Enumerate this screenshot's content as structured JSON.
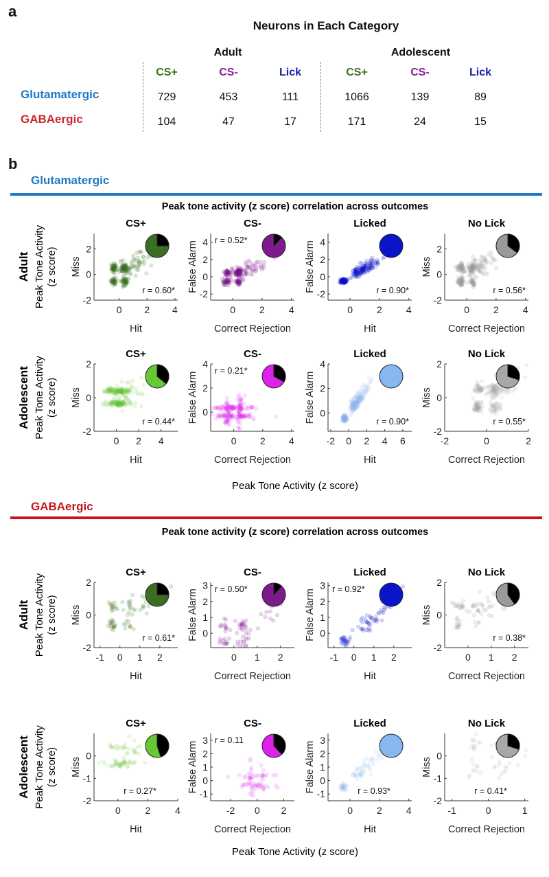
{
  "panel_a_label": "a",
  "panel_b_label": "b",
  "table": {
    "title": "Neurons in Each Category",
    "groups": [
      "Adult",
      "Adolescent"
    ],
    "columns": [
      {
        "label": "CS+",
        "color": "#3a6e1f"
      },
      {
        "label": "CS-",
        "color": "#8a1f9a"
      },
      {
        "label": "Lick",
        "color": "#1a1ab0"
      },
      {
        "label": "CS+",
        "color": "#3a6e1f"
      },
      {
        "label": "CS-",
        "color": "#8a1f9a"
      },
      {
        "label": "Lick",
        "color": "#1a1ab0"
      }
    ],
    "rows": [
      {
        "label": "Glutamatergic",
        "color": "#1f7ac4",
        "values": [
          "729",
          "453",
          "111",
          "1066",
          "139",
          "89"
        ]
      },
      {
        "label": "GABAergic",
        "color": "#c8282d",
        "values": [
          "104",
          "47",
          "17",
          "171",
          "24",
          "15"
        ]
      }
    ]
  },
  "chart_data": {
    "type": "scatter",
    "sections": [
      {
        "title": "Glutamatergic",
        "color": "#1f7ac4",
        "subtitle": "Peak tone activity (z score) correlation across outcomes",
        "shared_xlabel": "Peak Tone Activity (z score)",
        "row_ylabel_1": "Peak Tone Activity",
        "row_ylabel_2": "(z score)",
        "rows": [
          {
            "label": "Adult",
            "plots": [
              {
                "title": "CS+",
                "xlabel": "Hit",
                "ylabel": "Miss",
                "r": "r = 0.60*",
                "r_pos": "bottom-right",
                "pie_black_fraction": 0.25,
                "color": "#3b6e22",
                "xlim": [
                  -1.8,
                  4.2
                ],
                "ylim": [
                  -2,
                  3.2
                ],
                "xticks": [
                  0,
                  2,
                  4
                ],
                "yticks": [
                  -2,
                  0,
                  2
                ],
                "pattern": "quad"
              },
              {
                "title": "CS-",
                "xlabel": "Correct Rejection",
                "ylabel": "False Alarm",
                "r": "r = 0.52*",
                "r_pos": "top-left",
                "pie_black_fraction": 0.12,
                "color": "#7d1a8c",
                "xlim": [
                  -1.5,
                  4.2
                ],
                "ylim": [
                  -2.7,
                  5
                ],
                "xticks": [
                  0,
                  2,
                  4
                ],
                "yticks": [
                  -2,
                  0,
                  2,
                  4
                ],
                "pattern": "quad"
              },
              {
                "title": "Licked",
                "xlabel": "Hit",
                "ylabel": "False Alarm",
                "r": "r = 0.90*",
                "r_pos": "bottom-right",
                "pie_black_fraction": 0,
                "color": "#0a14c8",
                "xlim": [
                  -1.5,
                  4.2
                ],
                "ylim": [
                  -2.7,
                  5
                ],
                "xticks": [
                  0,
                  2,
                  4
                ],
                "yticks": [
                  -2,
                  0,
                  2,
                  4
                ],
                "pattern": "diag"
              },
              {
                "title": "No Lick",
                "xlabel": "Correct Rejection",
                "ylabel": "Miss",
                "r": "r = 0.56*",
                "r_pos": "bottom-right",
                "pie_black_fraction": 0.35,
                "color": "#9a9a9a",
                "xlim": [
                  -1.5,
                  4.2
                ],
                "ylim": [
                  -2,
                  3.2
                ],
                "xticks": [
                  0,
                  2,
                  4
                ],
                "yticks": [
                  -2,
                  0,
                  2
                ],
                "pattern": "quad"
              }
            ]
          },
          {
            "label": "Adolescent",
            "plots": [
              {
                "title": "CS+",
                "xlabel": "Hit",
                "ylabel": "Miss",
                "r": "r = 0.44*",
                "r_pos": "bottom-right",
                "pie_black_fraction": 0.36,
                "color": "#66c832",
                "xlim": [
                  -2,
                  5.5
                ],
                "ylim": [
                  -2,
                  2
                ],
                "xticks": [
                  0,
                  2,
                  4
                ],
                "yticks": [
                  -2,
                  0,
                  2
                ],
                "pattern": "bars"
              },
              {
                "title": "CS-",
                "xlabel": "Correct Rejection",
                "ylabel": "False Alarm",
                "r": "r = 0.21*",
                "r_pos": "top-left",
                "pie_black_fraction": 0.33,
                "color": "#dd22ee",
                "xlim": [
                  -1.6,
                  4.2
                ],
                "ylim": [
                  -1.6,
                  4
                ],
                "xticks": [
                  0,
                  2,
                  4
                ],
                "yticks": [
                  0,
                  2,
                  4
                ],
                "pattern": "cross"
              },
              {
                "title": "Licked",
                "xlabel": "Hit",
                "ylabel": "False Alarm",
                "r": "r = 0.90*",
                "r_pos": "bottom-right",
                "pie_black_fraction": 0,
                "color": "#88b6ee",
                "xlim": [
                  -2.3,
                  7
                ],
                "ylim": [
                  -1.5,
                  4
                ],
                "xticks": [
                  -2,
                  0,
                  2,
                  4,
                  6
                ],
                "yticks": [
                  0,
                  2,
                  4
                ],
                "pattern": "diag"
              },
              {
                "title": "No Lick",
                "xlabel": "Correct Rejection",
                "ylabel": "Miss",
                "r": "r = 0.55*",
                "r_pos": "bottom-right",
                "pie_black_fraction": 0.3,
                "color": "#a8a8a8",
                "xlim": [
                  -2,
                  2
                ],
                "ylim": [
                  -2,
                  2
                ],
                "xticks": [
                  -2,
                  0,
                  2
                ],
                "yticks": [
                  -2,
                  0,
                  2
                ],
                "pattern": "quad"
              }
            ]
          }
        ]
      },
      {
        "title": "GABAergic",
        "color": "#c8141e",
        "subtitle": "Peak tone activity (z score) correlation across outcomes",
        "shared_xlabel": "Peak Tone Activity (z score)",
        "row_ylabel_1": "Peak Tone Activity",
        "row_ylabel_2": "(z score)",
        "rows": [
          {
            "label": "Adult",
            "plots": [
              {
                "title": "CS+",
                "xlabel": "Hit",
                "ylabel": "Miss",
                "r": "r = 0.61*",
                "r_pos": "bottom-right",
                "pie_black_fraction": 0.25,
                "color": "#3b6e22",
                "xlim": [
                  -1.3,
                  2.9
                ],
                "ylim": [
                  -2,
                  2
                ],
                "xticks": [
                  -1,
                  0,
                  1,
                  2
                ],
                "yticks": [
                  -2,
                  0,
                  2
                ],
                "pattern": "quad"
              },
              {
                "title": "CS-",
                "xlabel": "Correct Rejection",
                "ylabel": "False Alarm",
                "r": "r = 0.50*",
                "r_pos": "top-left",
                "pie_black_fraction": 0.12,
                "color": "#7d1a8c",
                "xlim": [
                  -1,
                  2.6
                ],
                "ylim": [
                  -0.9,
                  3.2
                ],
                "xticks": [
                  0,
                  1,
                  2
                ],
                "yticks": [
                  0,
                  1,
                  2,
                  3
                ],
                "pattern": "quad"
              },
              {
                "title": "Licked",
                "xlabel": "Hit",
                "ylabel": "False Alarm",
                "r": "r = 0.92*",
                "r_pos": "top-left",
                "pie_black_fraction": 0,
                "color": "#0a14c8",
                "xlim": [
                  -1.3,
                  2.9
                ],
                "ylim": [
                  -0.9,
                  3.2
                ],
                "xticks": [
                  -1,
                  0,
                  1,
                  2
                ],
                "yticks": [
                  0,
                  1,
                  2,
                  3
                ],
                "pattern": "diag"
              },
              {
                "title": "No Lick",
                "xlabel": "Correct Rejection",
                "ylabel": "Miss",
                "r": "r = 0.38*",
                "r_pos": "bottom-right",
                "pie_black_fraction": 0.4,
                "color": "#9a9a9a",
                "xlim": [
                  -1,
                  2.6
                ],
                "ylim": [
                  -2,
                  2
                ],
                "xticks": [
                  0,
                  1,
                  2
                ],
                "yticks": [
                  -2,
                  0,
                  2
                ],
                "pattern": "quad"
              }
            ]
          },
          {
            "label": "Adolescent",
            "plots": [
              {
                "title": "CS+",
                "xlabel": "Hit",
                "ylabel": "Miss",
                "r": "r = 0.27*",
                "r_pos": "bottom-center",
                "pie_black_fraction": 0.45,
                "color": "#66c832",
                "xlim": [
                  -1.6,
                  4
                ],
                "ylim": [
                  -2,
                  1
                ],
                "xticks": [
                  0,
                  2,
                  4
                ],
                "yticks": [
                  -2,
                  -1,
                  0
                ],
                "pattern": "bars"
              },
              {
                "title": "CS-",
                "xlabel": "Correct Rejection",
                "ylabel": "False Alarm",
                "r": "r = 0.11",
                "r_pos": "top-left",
                "pie_black_fraction": 0.38,
                "color": "#dd22ee",
                "xlim": [
                  -3.5,
                  2.8
                ],
                "ylim": [
                  -1.5,
                  3.5
                ],
                "xticks": [
                  -2,
                  0,
                  2
                ],
                "yticks": [
                  -1,
                  0,
                  1,
                  2,
                  3
                ],
                "pattern": "cross"
              },
              {
                "title": "Licked",
                "xlabel": "Hit",
                "ylabel": "False Alarm",
                "r": "r = 0.93*",
                "r_pos": "bottom-center",
                "pie_black_fraction": 0,
                "color": "#88b6ee",
                "xlim": [
                  -1.5,
                  4.2
                ],
                "ylim": [
                  -1.5,
                  3.5
                ],
                "xticks": [
                  0,
                  2,
                  4
                ],
                "yticks": [
                  -1,
                  0,
                  1,
                  2,
                  3
                ],
                "pattern": "diag"
              },
              {
                "title": "No Lick",
                "xlabel": "Correct Rejection",
                "ylabel": "Miss",
                "r": "r = 0.41*",
                "r_pos": "bottom-center",
                "pie_black_fraction": 0.3,
                "color": "#a8a8a8",
                "xlim": [
                  -1.2,
                  1.1
                ],
                "ylim": [
                  -2,
                  1
                ],
                "xticks": [
                  -1,
                  0,
                  1
                ],
                "yticks": [
                  -2,
                  -1,
                  0
                ],
                "pattern": "quad"
              }
            ]
          }
        ]
      }
    ]
  }
}
